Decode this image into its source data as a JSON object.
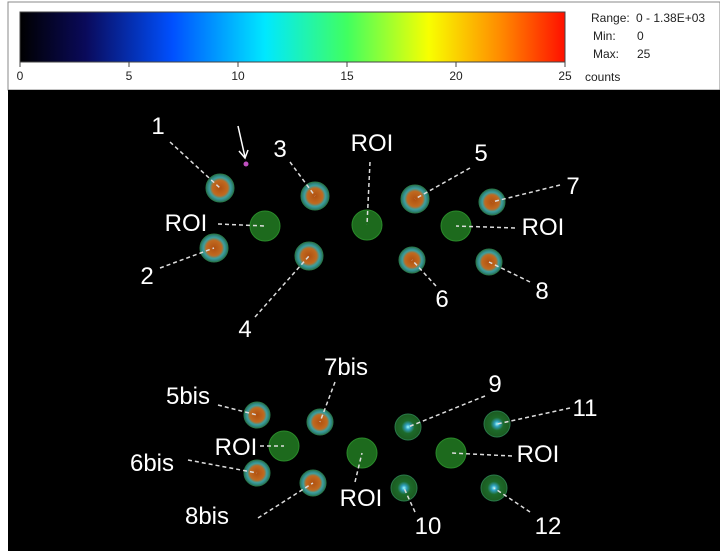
{
  "colorbar": {
    "ticks": [
      0,
      5,
      10,
      15,
      20,
      25
    ],
    "unit": "counts"
  },
  "info": {
    "range_label": "Range:",
    "range": "0 - 1.38E+03",
    "min_label": "Min:",
    "min": "0",
    "max_label": "Max:",
    "max": "25"
  },
  "annotations": [
    "1",
    "2",
    "3",
    "ROI",
    "5",
    "7",
    "ROI",
    "ROI",
    "6",
    "8",
    "4",
    "7bis",
    "5bis",
    "9",
    "11",
    "ROI",
    "ROI",
    "6bis",
    "8bis",
    "ROI",
    "10",
    "12"
  ]
}
